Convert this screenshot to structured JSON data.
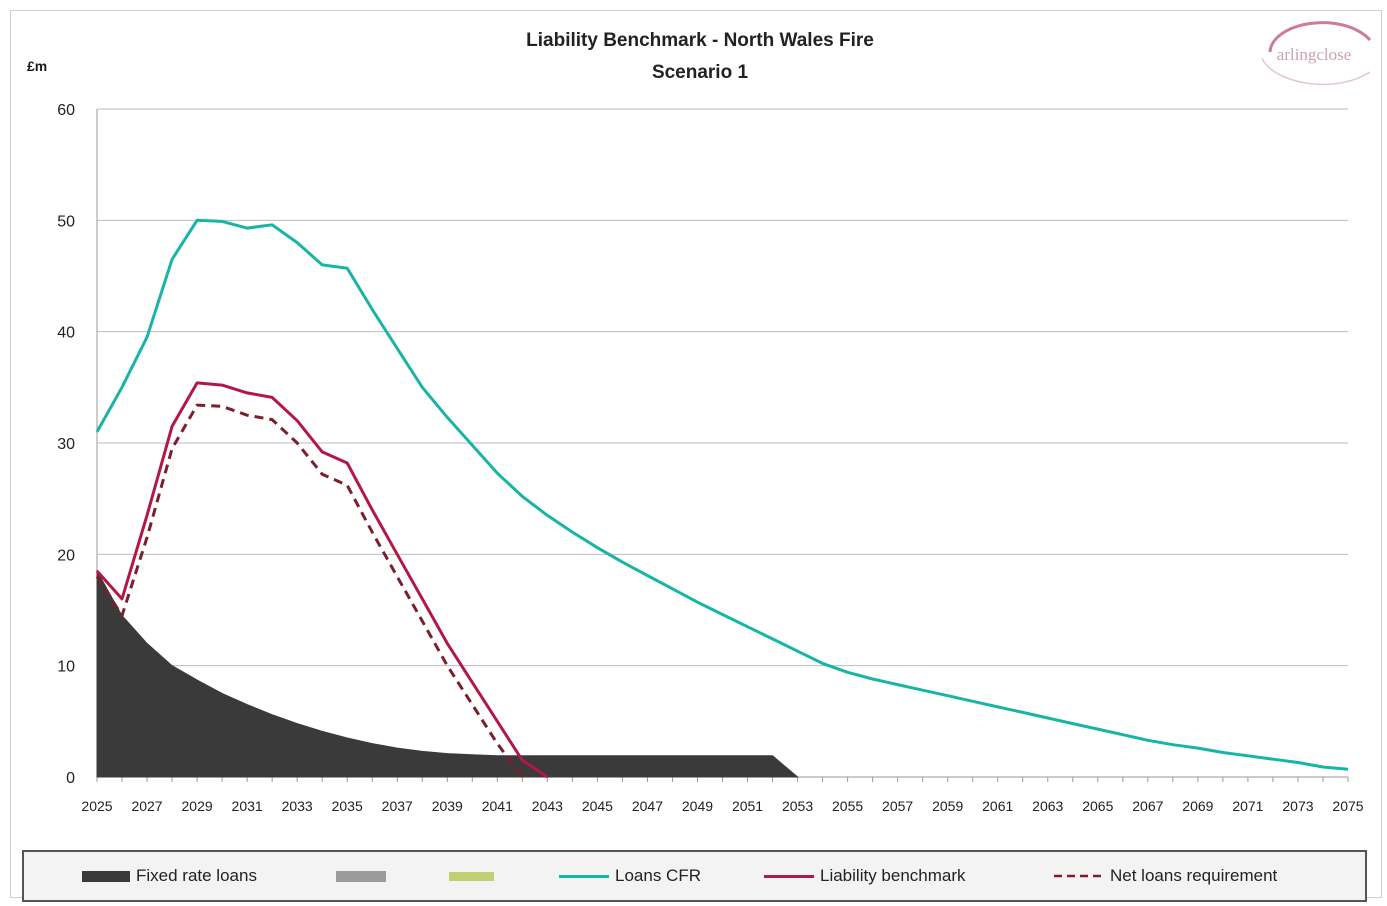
{
  "chart_data": {
    "type": "line",
    "title": "Liability Benchmark - North Wales Fire",
    "subtitle": "Scenario 1",
    "ylabel": "£m",
    "ylim": [
      0,
      60
    ],
    "yticks": [
      0,
      10,
      20,
      30,
      40,
      50,
      60
    ],
    "xlim": [
      2025,
      2075
    ],
    "xticks": [
      2025,
      2027,
      2029,
      2031,
      2033,
      2035,
      2037,
      2039,
      2041,
      2043,
      2045,
      2047,
      2049,
      2051,
      2053,
      2055,
      2057,
      2059,
      2061,
      2063,
      2065,
      2067,
      2069,
      2071,
      2073,
      2075
    ],
    "grid": "horizontal",
    "legend_position": "bottom",
    "series": [
      {
        "name": "Fixed rate loans",
        "kind": "area",
        "color": "#3a3a3a",
        "points": [
          [
            2025,
            18.5
          ],
          [
            2026,
            14.5
          ],
          [
            2027,
            12.0
          ],
          [
            2028,
            10.0
          ],
          [
            2029,
            8.7
          ],
          [
            2030,
            7.5
          ],
          [
            2031,
            6.5
          ],
          [
            2032,
            5.6
          ],
          [
            2033,
            4.8
          ],
          [
            2034,
            4.1
          ],
          [
            2035,
            3.5
          ],
          [
            2036,
            3.0
          ],
          [
            2037,
            2.6
          ],
          [
            2038,
            2.3
          ],
          [
            2039,
            2.1
          ],
          [
            2040,
            2.0
          ],
          [
            2041,
            1.9
          ],
          [
            2042,
            1.9
          ],
          [
            2043,
            1.9
          ],
          [
            2044,
            1.9
          ],
          [
            2045,
            1.9
          ],
          [
            2046,
            1.9
          ],
          [
            2047,
            1.9
          ],
          [
            2048,
            1.9
          ],
          [
            2049,
            1.9
          ],
          [
            2050,
            1.9
          ],
          [
            2051,
            1.9
          ],
          [
            2052,
            1.9
          ],
          [
            2053,
            0.0
          ]
        ]
      },
      {
        "name": "",
        "kind": "legend-only",
        "color": "#9b9b9b",
        "points": []
      },
      {
        "name": "",
        "kind": "legend-only",
        "color": "#c3cf73",
        "points": []
      },
      {
        "name": "Loans CFR",
        "kind": "line",
        "color": "#17b5a6",
        "points": [
          [
            2025,
            31.0
          ],
          [
            2026,
            35.0
          ],
          [
            2027,
            39.5
          ],
          [
            2028,
            46.5
          ],
          [
            2029,
            50.0
          ],
          [
            2030,
            49.9
          ],
          [
            2031,
            49.3
          ],
          [
            2032,
            49.6
          ],
          [
            2033,
            48.0
          ],
          [
            2034,
            46.0
          ],
          [
            2035,
            45.7
          ],
          [
            2036,
            42.0
          ],
          [
            2037,
            38.5
          ],
          [
            2038,
            35.0
          ],
          [
            2039,
            32.3
          ],
          [
            2040,
            29.8
          ],
          [
            2041,
            27.3
          ],
          [
            2042,
            25.2
          ],
          [
            2043,
            23.5
          ],
          [
            2044,
            22.0
          ],
          [
            2045,
            20.6
          ],
          [
            2046,
            19.3
          ],
          [
            2047,
            18.1
          ],
          [
            2048,
            16.9
          ],
          [
            2049,
            15.7
          ],
          [
            2050,
            14.6
          ],
          [
            2051,
            13.5
          ],
          [
            2052,
            12.4
          ],
          [
            2053,
            11.3
          ],
          [
            2054,
            10.2
          ],
          [
            2055,
            9.4
          ],
          [
            2056,
            8.8
          ],
          [
            2057,
            8.3
          ],
          [
            2058,
            7.8
          ],
          [
            2059,
            7.3
          ],
          [
            2060,
            6.8
          ],
          [
            2061,
            6.3
          ],
          [
            2062,
            5.8
          ],
          [
            2063,
            5.3
          ],
          [
            2064,
            4.8
          ],
          [
            2065,
            4.3
          ],
          [
            2066,
            3.8
          ],
          [
            2067,
            3.3
          ],
          [
            2068,
            2.9
          ],
          [
            2069,
            2.6
          ],
          [
            2070,
            2.2
          ],
          [
            2071,
            1.9
          ],
          [
            2072,
            1.6
          ],
          [
            2073,
            1.3
          ],
          [
            2074,
            0.9
          ],
          [
            2075,
            0.7
          ]
        ]
      },
      {
        "name": "Liability benchmark",
        "kind": "line",
        "color": "#b3174a",
        "points": [
          [
            2025,
            18.5
          ],
          [
            2026,
            16.0
          ],
          [
            2027,
            23.5
          ],
          [
            2028,
            31.5
          ],
          [
            2029,
            35.4
          ],
          [
            2030,
            35.2
          ],
          [
            2031,
            34.5
          ],
          [
            2032,
            34.1
          ],
          [
            2033,
            32.0
          ],
          [
            2034,
            29.2
          ],
          [
            2035,
            28.2
          ],
          [
            2036,
            24.0
          ],
          [
            2037,
            20.0
          ],
          [
            2038,
            16.0
          ],
          [
            2039,
            12.0
          ],
          [
            2040,
            8.5
          ],
          [
            2041,
            5.0
          ],
          [
            2042,
            1.5
          ],
          [
            2043,
            0.0
          ]
        ]
      },
      {
        "name": "Net loans requirement",
        "kind": "dashed",
        "color": "#7a1f2d",
        "points": [
          [
            2025,
            18.0
          ],
          [
            2026,
            14.5
          ],
          [
            2027,
            21.5
          ],
          [
            2028,
            29.5
          ],
          [
            2029,
            33.4
          ],
          [
            2030,
            33.3
          ],
          [
            2031,
            32.5
          ],
          [
            2032,
            32.1
          ],
          [
            2033,
            30.0
          ],
          [
            2034,
            27.2
          ],
          [
            2035,
            26.2
          ],
          [
            2036,
            22.0
          ],
          [
            2037,
            18.0
          ],
          [
            2038,
            14.0
          ],
          [
            2039,
            10.0
          ],
          [
            2040,
            6.5
          ],
          [
            2041,
            3.0
          ],
          [
            2042,
            0.0
          ]
        ]
      }
    ]
  },
  "logo": {
    "text": "arlingclose",
    "color": "#c9a3b6"
  },
  "legend": {
    "fixed": "Fixed rate loans",
    "blank1": "",
    "blank2": "",
    "cfr": "Loans CFR",
    "lb": "Liability benchmark",
    "net": "Net loans requirement"
  }
}
